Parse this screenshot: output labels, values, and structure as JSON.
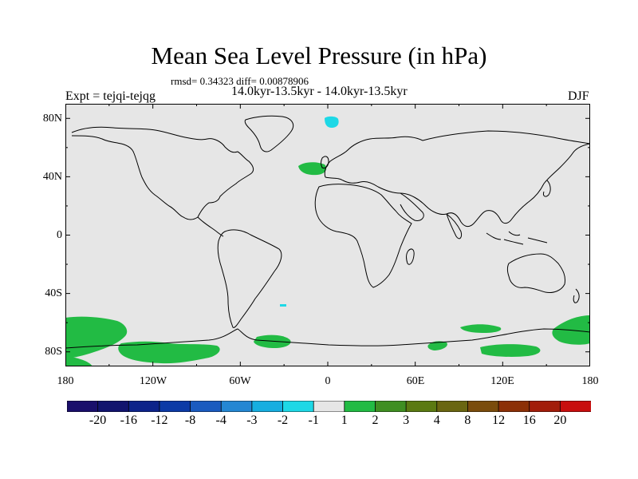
{
  "title": "Mean Sea Level Pressure (in hPa)",
  "stats_line": "rmsd= 0.34323 diff= 0.00878906",
  "period_line": "14.0kyr-13.5kyr - 14.0kyr-13.5kyr",
  "expt_label": "Expt = tejqi-tejqg",
  "season_label": "DJF",
  "y_axis": {
    "labels": [
      "80N",
      "40N",
      "0",
      "40S",
      "80S"
    ],
    "lat_values": [
      80,
      40,
      0,
      -40,
      -80
    ]
  },
  "x_axis": {
    "labels": [
      "180",
      "120W",
      "60W",
      "0",
      "60E",
      "120E",
      "180"
    ],
    "lon_values": [
      -180,
      -120,
      -60,
      0,
      60,
      120,
      180
    ]
  },
  "colorbar": {
    "labels": [
      "-20",
      "-16",
      "-12",
      "-8",
      "-4",
      "-3",
      "-2",
      "-1",
      "1",
      "2",
      "3",
      "4",
      "8",
      "12",
      "16",
      "20"
    ],
    "colors": [
      "#1a0f6b",
      "#12146e",
      "#0d238a",
      "#0c3aa6",
      "#1a5bbf",
      "#2487d3",
      "#16aee0",
      "#1ed8e6",
      "#e6e6e6",
      "#22bb44",
      "#3f8f22",
      "#5b7a12",
      "#6a6611",
      "#7a4c0c",
      "#8c3007",
      "#a21d0a",
      "#c80e0e"
    ]
  },
  "map": {
    "background_color": "#e6e6e6",
    "lat_range": [
      -90,
      90
    ],
    "lon_range": [
      -180,
      180
    ],
    "anomaly_regions": [
      {
        "level": "2",
        "color": "#22bb44",
        "location": "southern ocean, south pacific"
      },
      {
        "level": "2",
        "color": "#22bb44",
        "location": "north atlantic near iberia"
      },
      {
        "level": "2",
        "color": "#22bb44",
        "location": "southern ocean, south indian / australia sector"
      },
      {
        "level": "-1",
        "color": "#1ed8e6",
        "location": "arctic near greenland"
      },
      {
        "level": "-1",
        "color": "#1ed8e6",
        "location": "south atlantic (small patch)"
      }
    ]
  }
}
